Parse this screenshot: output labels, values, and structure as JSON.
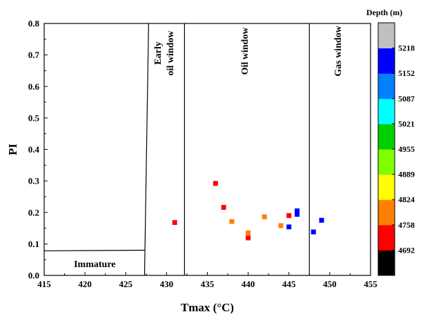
{
  "chart_data": {
    "type": "scatter",
    "xlabel": "Tmax (°C)",
    "ylabel": "PI",
    "xlim": [
      415,
      455
    ],
    "ylim": [
      0,
      0.8
    ],
    "x_ticks": [
      "415",
      "420",
      "425",
      "430",
      "435",
      "440",
      "445",
      "450",
      "455"
    ],
    "y_ticks": [
      "0.0",
      "0.1",
      "0.2",
      "0.3",
      "0.4",
      "0.5",
      "0.6",
      "0.7",
      "0.8"
    ],
    "grid": false,
    "zones": [
      {
        "label": "Immature"
      },
      {
        "label_line1": "Early",
        "label_line2": "oil window"
      },
      {
        "label": "Oil window"
      },
      {
        "label": "Gas window"
      }
    ],
    "zone_boundaries": {
      "immature_top": [
        [
          415,
          0.078
        ],
        [
          427.3,
          0.08
        ]
      ],
      "early_oil_left": [
        [
          427.3,
          0.0
        ],
        [
          427.8,
          0.8
        ]
      ],
      "oil_left": [
        [
          432.2,
          0.0
        ],
        [
          432.2,
          0.8
        ]
      ],
      "gas_left": [
        [
          447.5,
          0.0
        ],
        [
          447.5,
          0.8
        ]
      ]
    },
    "points": [
      {
        "x": 431,
        "y": 0.168,
        "color": "#ff0000"
      },
      {
        "x": 436,
        "y": 0.292,
        "color": "#ff0000"
      },
      {
        "x": 437,
        "y": 0.216,
        "color": "#ff0000"
      },
      {
        "x": 438,
        "y": 0.171,
        "color": "#ff8000"
      },
      {
        "x": 440,
        "y": 0.135,
        "color": "#ff8000"
      },
      {
        "x": 440,
        "y": 0.119,
        "color": "#ff0000"
      },
      {
        "x": 442,
        "y": 0.186,
        "color": "#ff8000"
      },
      {
        "x": 444,
        "y": 0.158,
        "color": "#ff8000"
      },
      {
        "x": 445,
        "y": 0.19,
        "color": "#ff0000"
      },
      {
        "x": 445,
        "y": 0.154,
        "color": "#0000ff"
      },
      {
        "x": 446,
        "y": 0.205,
        "color": "#0000ff"
      },
      {
        "x": 446,
        "y": 0.194,
        "color": "#0000ff"
      },
      {
        "x": 448,
        "y": 0.138,
        "color": "#0000ff"
      },
      {
        "x": 449,
        "y": 0.175,
        "color": "#0000ff"
      }
    ],
    "colorbar": {
      "title": "Depth (m)",
      "labels": [
        "5218",
        "5152",
        "5087",
        "5021",
        "4955",
        "4889",
        "4824",
        "4758",
        "4692"
      ],
      "colors_bottom_to_top": [
        "#000000",
        "#ff0000",
        "#ff8000",
        "#ffff00",
        "#80ff00",
        "#00d000",
        "#00ffff",
        "#0080ff",
        "#0000ff",
        "#c0c0c0"
      ]
    }
  }
}
